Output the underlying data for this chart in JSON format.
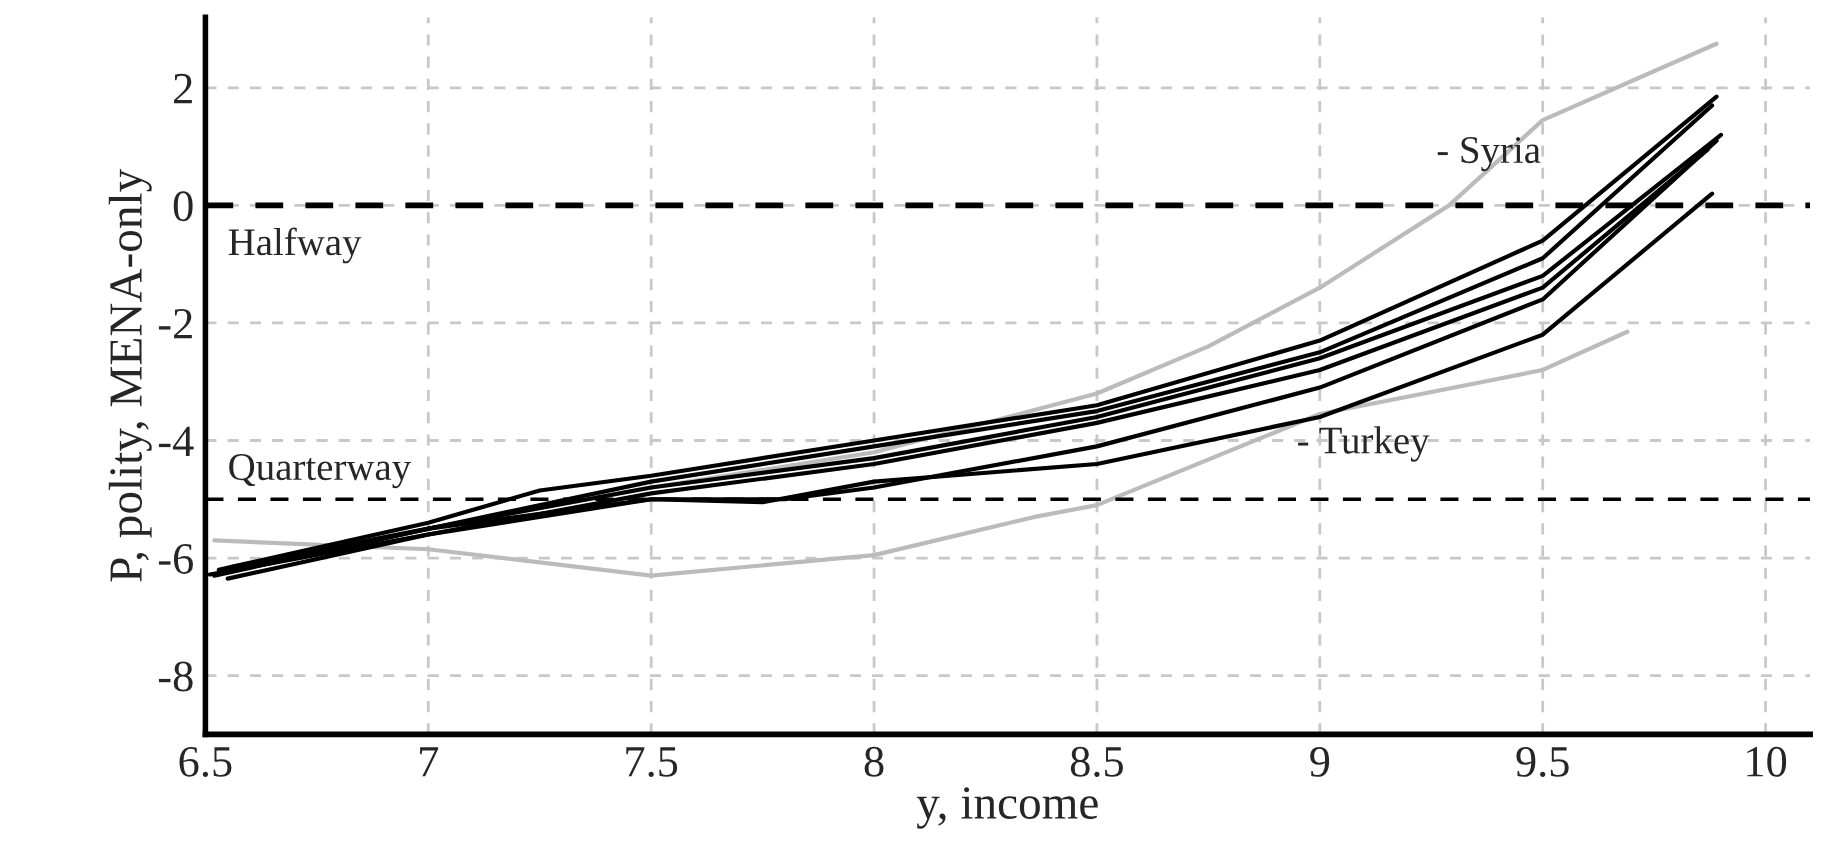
{
  "chart_data": {
    "type": "line",
    "xlabel": "y, income",
    "ylabel": "P, polity, MENA-only",
    "xlim": [
      6.5,
      10.1
    ],
    "ylim": [
      -9,
      3.2
    ],
    "xticks": [
      6.5,
      7,
      7.5,
      8,
      8.5,
      9,
      9.5,
      10
    ],
    "yticks": [
      -8,
      -6,
      -4,
      -2,
      0,
      2
    ],
    "grid": true,
    "legend": false,
    "marker": "none",
    "line_style": "solid",
    "series": [
      {
        "color": "#bbbbbb",
        "x": [
          6.52,
          7.0,
          7.5,
          8.0,
          8.36,
          8.5,
          9.0,
          9.5,
          9.69
        ],
        "values": [
          -5.7,
          -5.85,
          -6.3,
          -5.95,
          -5.3,
          -5.1,
          -3.55,
          -2.8,
          -2.15
        ]
      },
      {
        "color": "#bbbbbb",
        "x": [
          6.6,
          7.0,
          7.5,
          8.0,
          8.5,
          8.75,
          9.0,
          9.29,
          9.5,
          9.89
        ],
        "values": [
          -6.15,
          -5.5,
          -4.8,
          -4.2,
          -3.2,
          -2.4,
          -1.4,
          0.0,
          1.45,
          2.75
        ]
      },
      {
        "color": "#000000",
        "x": [
          6.53,
          7.0,
          7.25,
          7.5,
          8.0,
          8.5,
          9.0,
          9.5,
          9.89
        ],
        "values": [
          -6.2,
          -5.4,
          -4.85,
          -4.6,
          -4.0,
          -3.4,
          -2.3,
          -0.6,
          1.85
        ]
      },
      {
        "color": "#000000",
        "x": [
          6.54,
          7.0,
          7.5,
          8.0,
          8.5,
          9.0,
          9.5,
          9.88
        ],
        "values": [
          -6.25,
          -5.5,
          -4.7,
          -4.1,
          -3.5,
          -2.5,
          -0.9,
          1.7
        ]
      },
      {
        "color": "#000000",
        "x": [
          6.52,
          7.0,
          7.5,
          8.0,
          8.5,
          9.0,
          9.5,
          9.9
        ],
        "values": [
          -6.3,
          -5.5,
          -4.8,
          -4.3,
          -3.6,
          -2.6,
          -1.2,
          1.2
        ]
      },
      {
        "color": "#000000",
        "x": [
          6.55,
          7.0,
          7.5,
          8.0,
          8.5,
          9.0,
          9.5,
          9.87
        ],
        "values": [
          -6.35,
          -5.6,
          -4.9,
          -4.4,
          -3.7,
          -2.8,
          -1.4,
          0.95
        ]
      },
      {
        "color": "#000000",
        "x": [
          6.51,
          7.0,
          7.5,
          7.8,
          8.0,
          8.5,
          9.0,
          9.5,
          9.89
        ],
        "values": [
          -6.28,
          -5.6,
          -5.0,
          -5.0,
          -4.8,
          -4.1,
          -3.1,
          -1.6,
          1.1
        ]
      },
      {
        "color": "#000000",
        "x": [
          6.56,
          7.0,
          7.5,
          7.75,
          8.0,
          8.5,
          9.0,
          9.5,
          9.88
        ],
        "values": [
          -6.15,
          -5.5,
          -5.0,
          -5.05,
          -4.7,
          -4.4,
          -3.6,
          -2.2,
          0.2
        ]
      }
    ],
    "ref_lines": [
      {
        "axis": "y",
        "value": 0,
        "label": "Halfway",
        "color": "#000000",
        "line_style": "dashed"
      },
      {
        "axis": "y",
        "value": -5,
        "label": "Quarterway",
        "color": "#000000",
        "line_style": "dashed"
      }
    ],
    "annotations": [
      "- Syria",
      "- Turkey"
    ]
  }
}
